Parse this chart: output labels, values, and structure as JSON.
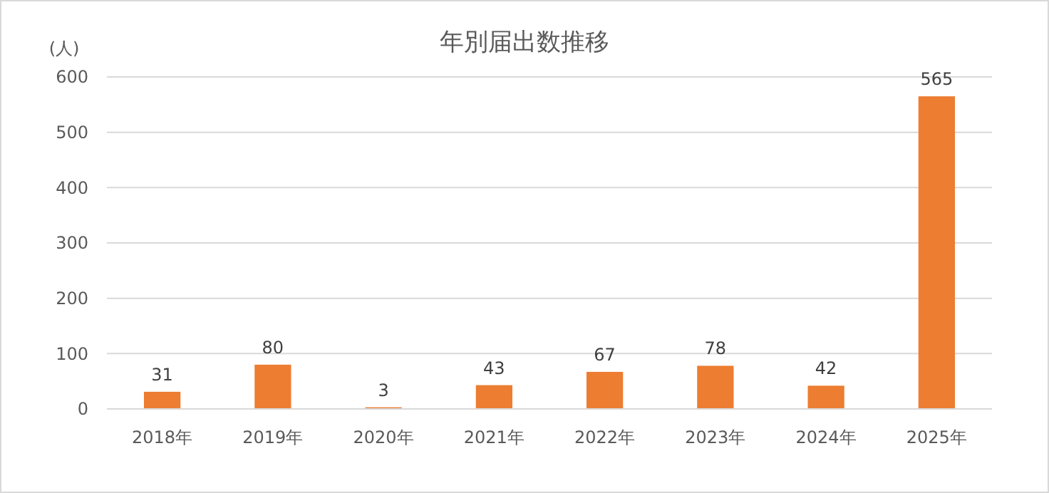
{
  "chart_data": {
    "type": "bar",
    "title": "年別届出数推移",
    "ylabel": "(人)",
    "categories": [
      "2018年",
      "2019年",
      "2020年",
      "2021年",
      "2022年",
      "2023年",
      "2024年",
      "2025年"
    ],
    "values": [
      31,
      80,
      3,
      43,
      67,
      78,
      42,
      565
    ],
    "color": "#ed7d31",
    "ylim": [
      0,
      600
    ],
    "yticks": [
      0,
      100,
      200,
      300,
      400,
      500,
      600
    ],
    "grid": "y",
    "data_labels": true
  }
}
